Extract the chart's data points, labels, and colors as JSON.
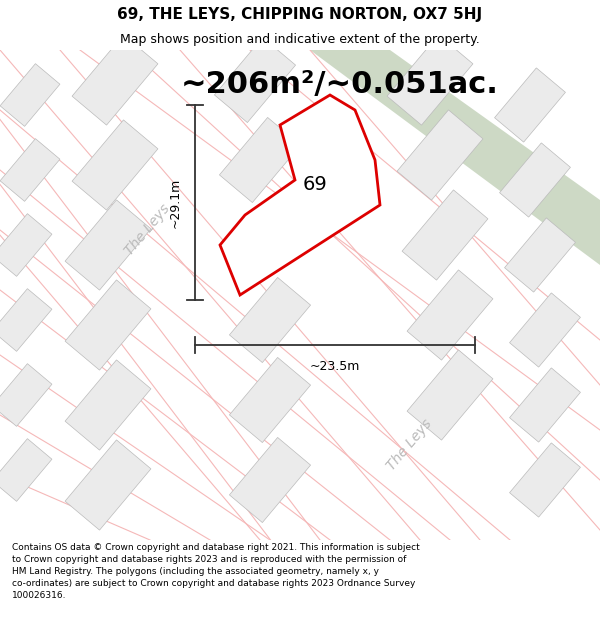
{
  "title": "69, THE LEYS, CHIPPING NORTON, OX7 5HJ",
  "subtitle": "Map shows position and indicative extent of the property.",
  "area_label": "~206m²/~0.051ac.",
  "dim_v_label": "~29.1m",
  "dim_h_label": "~23.5m",
  "number_label": "69",
  "road_label1": "The Leys",
  "road_label2": "The Leys",
  "footer": "Contains OS data © Crown copyright and database right 2021. This information is subject to Crown copyright and database rights 2023 and is reproduced with the permission of HM Land Registry. The polygons (including the associated geometry, namely x, y co-ordinates) are subject to Crown copyright and database rights 2023 Ordnance Survey 100026316.",
  "map_bg": "#ffffff",
  "building_face": "#ebebeb",
  "building_edge": "#bbbbbb",
  "road_line_color": "#f5b8b8",
  "road_bg": "#f8f8f8",
  "green_color": "#cdd9c5",
  "property_face": "#ffffff",
  "property_edge": "#dd0000",
  "dim_color": "#333333",
  "road_text_color": "#bbbbbb",
  "title_fontsize": 11,
  "subtitle_fontsize": 9,
  "area_fontsize": 22,
  "footer_fontsize": 6.5,
  "dim_fontsize": 9,
  "road_fontsize": 10,
  "num_fontsize": 14
}
